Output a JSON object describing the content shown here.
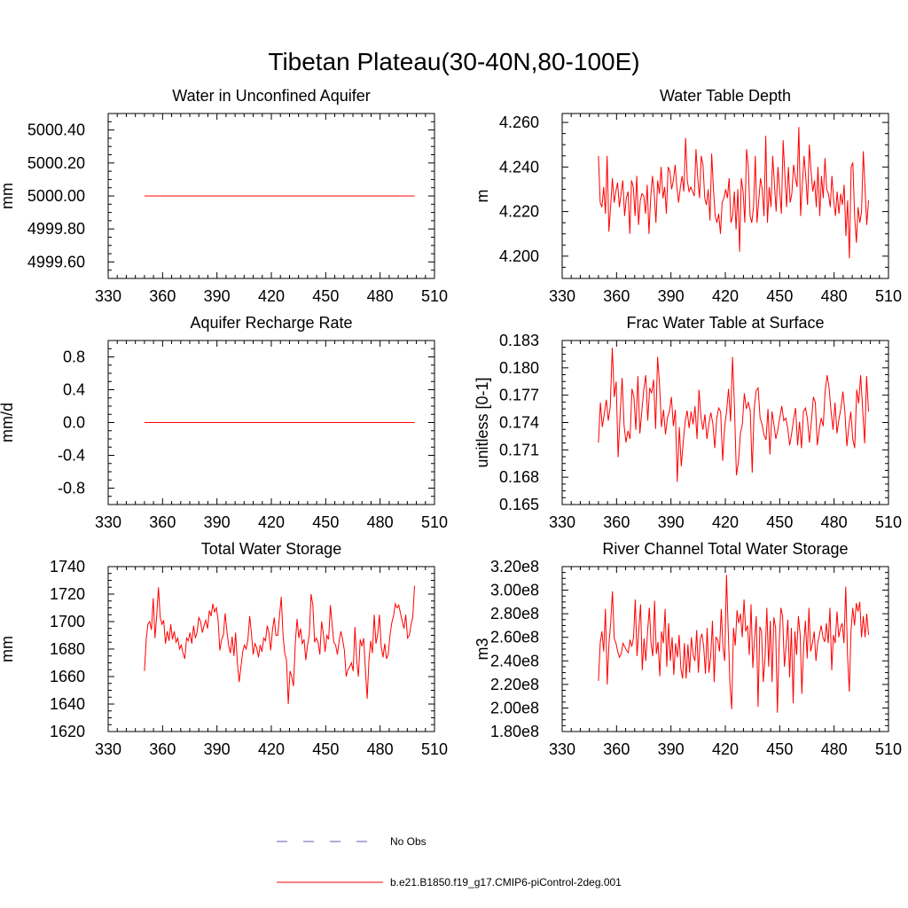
{
  "figure_title": "Tibetan Plateau(30-40N,80-100E)",
  "legend": {
    "entries": [
      {
        "label": "No Obs",
        "color": "#5b5bb8",
        "style": "dashed"
      },
      {
        "label": "b.e21.B1850.f19_g17.CMIP6-piControl-2deg.001",
        "color": "#ff0000",
        "style": "solid"
      }
    ]
  },
  "chart_data": [
    {
      "type": "line",
      "title": "Water in Unconfined Aquifer",
      "ylabel": "mm",
      "xlim": [
        330,
        510
      ],
      "ylim": [
        4999.5,
        5000.5
      ],
      "xticks": [
        330,
        360,
        390,
        420,
        450,
        480,
        510
      ],
      "xtick_labels": [
        "330",
        "360",
        "390",
        "420",
        "450",
        "480",
        "510"
      ],
      "yticks": [
        4999.6,
        4999.8,
        5000.0,
        5000.2,
        5000.4
      ],
      "ytick_labels": [
        "4999.60",
        "4999.80",
        "5000.00",
        "5000.20",
        "5000.40"
      ],
      "series": [
        {
          "name": "b.e21.B1850.f19_g17.CMIP6-piControl-2deg.001",
          "x_start": 350,
          "x_end": 499,
          "values": [
            5000.0,
            5000.0
          ]
        }
      ]
    },
    {
      "type": "line",
      "title": "Water Table Depth",
      "ylabel": "m",
      "xlim": [
        330,
        510
      ],
      "ylim": [
        4.19,
        4.264
      ],
      "xticks": [
        330,
        360,
        390,
        420,
        450,
        480,
        510
      ],
      "xtick_labels": [
        "330",
        "360",
        "390",
        "420",
        "450",
        "480",
        "510"
      ],
      "yticks": [
        4.2,
        4.22,
        4.24,
        4.26
      ],
      "ytick_labels": [
        "4.200",
        "4.220",
        "4.240",
        "4.260"
      ],
      "series": [
        {
          "name": "b.e21.B1850.f19_g17.CMIP6-piControl-2deg.001",
          "x_start": 350,
          "x_end": 499,
          "values": [
            4.245,
            4.224,
            4.222,
            4.231,
            4.219,
            4.245,
            4.211,
            4.222,
            4.235,
            4.224,
            4.229,
            4.233,
            4.222,
            4.228,
            4.234,
            4.218,
            4.226,
            4.229,
            4.21,
            4.234,
            4.231,
            4.218,
            4.236,
            4.214,
            4.225,
            4.228,
            4.227,
            4.219,
            4.232,
            4.21,
            4.226,
            4.236,
            4.228,
            4.215,
            4.234,
            4.228,
            4.24,
            4.226,
            4.231,
            4.219,
            4.24,
            4.238,
            4.23,
            4.234,
            4.241,
            4.231,
            4.224,
            4.231,
            4.236,
            4.229,
            4.253,
            4.234,
            4.229,
            4.231,
            4.229,
            4.227,
            4.248,
            4.235,
            4.226,
            4.245,
            4.241,
            4.226,
            4.223,
            4.23,
            4.216,
            4.246,
            4.23,
            4.218,
            4.215,
            4.219,
            4.21,
            4.224,
            4.226,
            4.23,
            4.226,
            4.235,
            4.215,
            4.218,
            4.229,
            4.212,
            4.23,
            4.202,
            4.235,
            4.229,
            4.215,
            4.248,
            4.24,
            4.218,
            4.215,
            4.222,
            4.245,
            4.215,
            4.225,
            4.235,
            4.23,
            4.218,
            4.254,
            4.215,
            4.231,
            4.222,
            4.245,
            4.232,
            4.22,
            4.24,
            4.229,
            4.219,
            4.252,
            4.236,
            4.222,
            4.24,
            4.224,
            4.228,
            4.241,
            4.235,
            4.231,
            4.258,
            4.218,
            4.232,
            4.245,
            4.235,
            4.223,
            4.25,
            4.238,
            4.229,
            4.234,
            4.222,
            4.24,
            4.218,
            4.236,
            4.226,
            4.244,
            4.23,
            4.228,
            4.222,
            4.236,
            4.225,
            4.218,
            4.229,
            4.219,
            4.228,
            4.223,
            4.232,
            4.209,
            4.225,
            4.199,
            4.24,
            4.242,
            4.218,
            4.206,
            4.222,
            4.215,
            4.22,
            4.247,
            4.23,
            4.214,
            4.225
          ]
        }
      ]
    },
    {
      "type": "line",
      "title": "Aquifer Recharge Rate",
      "ylabel": "mm/d",
      "xlim": [
        330,
        510
      ],
      "ylim": [
        -1.0,
        1.0
      ],
      "xticks": [
        330,
        360,
        390,
        420,
        450,
        480,
        510
      ],
      "xtick_labels": [
        "330",
        "360",
        "390",
        "420",
        "450",
        "480",
        "510"
      ],
      "yticks": [
        -0.8,
        -0.4,
        0.0,
        0.4,
        0.8
      ],
      "ytick_labels": [
        "-0.8",
        "-0.4",
        "0.0",
        "0.4",
        "0.8"
      ],
      "series": [
        {
          "name": "b.e21.B1850.f19_g17.CMIP6-piControl-2deg.001",
          "x_start": 350,
          "x_end": 499,
          "values": [
            0.0,
            0.0
          ]
        }
      ]
    },
    {
      "type": "line",
      "title": "Frac Water Table at Surface",
      "ylabel": "unitless [0-1]",
      "xlim": [
        330,
        510
      ],
      "ylim": [
        0.165,
        0.183
      ],
      "xticks": [
        330,
        360,
        390,
        420,
        450,
        480,
        510
      ],
      "xtick_labels": [
        "330",
        "360",
        "390",
        "420",
        "450",
        "480",
        "510"
      ],
      "yticks": [
        0.165,
        0.168,
        0.171,
        0.174,
        0.177,
        0.18,
        0.183
      ],
      "ytick_labels": [
        "0.165",
        "0.168",
        "0.171",
        "0.174",
        "0.177",
        "0.180",
        "0.183"
      ],
      "series": [
        {
          "name": "b.e21.B1850.f19_g17.CMIP6-piControl-2deg.001",
          "x_start": 350,
          "x_end": 499,
          "values": [
            0.1718,
            0.1762,
            0.1735,
            0.175,
            0.1765,
            0.1742,
            0.1757,
            0.1822,
            0.1768,
            0.1785,
            0.1702,
            0.1748,
            0.1789,
            0.1737,
            0.1718,
            0.1731,
            0.1722,
            0.1777,
            0.1768,
            0.1732,
            0.1791,
            0.1728,
            0.1752,
            0.1776,
            0.1792,
            0.1742,
            0.1778,
            0.1772,
            0.1787,
            0.1733,
            0.1812,
            0.1782,
            0.1735,
            0.1754,
            0.1727,
            0.1745,
            0.1752,
            0.1768,
            0.1736,
            0.1754,
            0.1675,
            0.1735,
            0.1692,
            0.1718,
            0.1741,
            0.1753,
            0.1734,
            0.1752,
            0.1738,
            0.1758,
            0.1722,
            0.1776,
            0.1746,
            0.1732,
            0.1749,
            0.1722,
            0.1738,
            0.1751,
            0.1739,
            0.1712,
            0.1745,
            0.1756,
            0.1752,
            0.1698,
            0.1735,
            0.1752,
            0.1777,
            0.1741,
            0.1812,
            0.1757,
            0.1682,
            0.1697,
            0.1728,
            0.1738,
            0.1772,
            0.1755,
            0.1762,
            0.1753,
            0.1685,
            0.1755,
            0.1775,
            0.1778,
            0.1745,
            0.1738,
            0.1726,
            0.1721,
            0.1755,
            0.1705,
            0.1752,
            0.1738,
            0.1722,
            0.1732,
            0.1746,
            0.1758,
            0.1742,
            0.1745,
            0.1734,
            0.1715,
            0.1728,
            0.1744,
            0.1756,
            0.1715,
            0.1741,
            0.1712,
            0.1752,
            0.1756,
            0.1744,
            0.1718,
            0.1741,
            0.1768,
            0.1762,
            0.1715,
            0.1732,
            0.1745,
            0.1736,
            0.1775,
            0.1792,
            0.1778,
            0.1752,
            0.1732,
            0.1762,
            0.1728,
            0.1744,
            0.1756,
            0.1774,
            0.1752,
            0.1714,
            0.1736,
            0.1752,
            0.1722,
            0.1712,
            0.1776,
            0.1761,
            0.1792,
            0.1756,
            0.1717,
            0.1791,
            0.1752
          ]
        }
      ]
    },
    {
      "type": "line",
      "title": "Total Water Storage",
      "ylabel": "mm",
      "xlim": [
        330,
        510
      ],
      "ylim": [
        1620,
        1740
      ],
      "xticks": [
        330,
        360,
        390,
        420,
        450,
        480,
        510
      ],
      "xtick_labels": [
        "330",
        "360",
        "390",
        "420",
        "450",
        "480",
        "510"
      ],
      "yticks": [
        1620,
        1640,
        1660,
        1680,
        1700,
        1720,
        1740
      ],
      "ytick_labels": [
        "1620",
        "1640",
        "1660",
        "1680",
        "1700",
        "1720",
        "1740"
      ],
      "series": [
        {
          "name": "b.e21.B1850.f19_g17.CMIP6-piControl-2deg.001",
          "x_start": 350,
          "x_end": 499,
          "values": [
            1664,
            1687,
            1698,
            1700,
            1694,
            1717,
            1688,
            1704,
            1725,
            1703,
            1698,
            1701,
            1684,
            1693,
            1686,
            1698,
            1687,
            1693,
            1685,
            1688,
            1680,
            1683,
            1677,
            1673,
            1688,
            1686,
            1692,
            1684,
            1697,
            1688,
            1692,
            1703,
            1700,
            1692,
            1697,
            1701,
            1695,
            1708,
            1704,
            1713,
            1707,
            1710,
            1701,
            1679,
            1687,
            1690,
            1706,
            1693,
            1683,
            1677,
            1689,
            1675,
            1692,
            1670,
            1656,
            1667,
            1678,
            1683,
            1680,
            1687,
            1704,
            1691,
            1676,
            1684,
            1681,
            1674,
            1683,
            1678,
            1688,
            1686,
            1697,
            1692,
            1679,
            1694,
            1703,
            1690,
            1690,
            1704,
            1718,
            1690,
            1677,
            1672,
            1640,
            1664,
            1660,
            1653,
            1684,
            1702,
            1688,
            1695,
            1684,
            1687,
            1672,
            1683,
            1690,
            1720,
            1712,
            1685,
            1688,
            1685,
            1676,
            1700,
            1691,
            1678,
            1690,
            1687,
            1712,
            1698,
            1685,
            1683,
            1676,
            1686,
            1693,
            1687,
            1679,
            1660,
            1665,
            1667,
            1670,
            1664,
            1696,
            1672,
            1660,
            1687,
            1682,
            1688,
            1665,
            1644,
            1672,
            1686,
            1677,
            1705,
            1684,
            1691,
            1705,
            1682,
            1674,
            1684,
            1673,
            1676,
            1690,
            1699,
            1704,
            1713,
            1710,
            1712,
            1706,
            1700,
            1695,
            1705,
            1688,
            1690,
            1698,
            1703,
            1726
          ]
        }
      ]
    },
    {
      "type": "line",
      "title": "River Channel Total Water Storage",
      "ylabel": "m3",
      "xlim": [
        330,
        510
      ],
      "ylim": [
        180000000.0,
        320000000.0
      ],
      "xticks": [
        330,
        360,
        390,
        420,
        450,
        480,
        510
      ],
      "xtick_labels": [
        "330",
        "360",
        "390",
        "420",
        "450",
        "480",
        "510"
      ],
      "yticks": [
        180000000.0,
        200000000.0,
        220000000.0,
        240000000.0,
        260000000.0,
        280000000.0,
        300000000.0,
        320000000.0
      ],
      "ytick_labels": [
        "1.80e8",
        "2.00e8",
        "2.20e8",
        "2.40e8",
        "2.60e8",
        "2.80e8",
        "3.00e8",
        "3.20e8"
      ],
      "series": [
        {
          "name": "b.e21.B1850.f19_g17.CMIP6-piControl-2deg.001",
          "x_start": 350,
          "x_end": 499,
          "values": [
            223000000.0,
            255000000.0,
            265000000.0,
            248000000.0,
            284000000.0,
            220000000.0,
            255000000.0,
            272000000.0,
            299000000.0,
            259000000.0,
            255000000.0,
            248000000.0,
            243000000.0,
            246000000.0,
            255000000.0,
            252000000.0,
            249000000.0,
            247000000.0,
            258000000.0,
            252000000.0,
            260000000.0,
            292000000.0,
            244000000.0,
            266000000.0,
            288000000.0,
            232000000.0,
            259000000.0,
            240000000.0,
            265000000.0,
            285000000.0,
            255000000.0,
            244000000.0,
            291000000.0,
            246000000.0,
            256000000.0,
            227000000.0,
            265000000.0,
            255000000.0,
            284000000.0,
            235000000.0,
            272000000.0,
            240000000.0,
            260000000.0,
            228000000.0,
            255000000.0,
            243000000.0,
            262000000.0,
            233000000.0,
            225000000.0,
            255000000.0,
            225000000.0,
            254000000.0,
            230000000.0,
            260000000.0,
            245000000.0,
            240000000.0,
            266000000.0,
            230000000.0,
            258000000.0,
            263000000.0,
            252000000.0,
            229000000.0,
            268000000.0,
            230000000.0,
            244000000.0,
            274000000.0,
            222000000.0,
            260000000.0,
            258000000.0,
            248000000.0,
            284000000.0,
            252000000.0,
            240000000.0,
            313000000.0,
            265000000.0,
            220000000.0,
            199000000.0,
            268000000.0,
            253000000.0,
            283000000.0,
            272000000.0,
            280000000.0,
            260000000.0,
            292000000.0,
            265000000.0,
            270000000.0,
            245000000.0,
            288000000.0,
            234000000.0,
            258000000.0,
            278000000.0,
            201000000.0,
            269000000.0,
            265000000.0,
            222000000.0,
            243000000.0,
            285000000.0,
            235000000.0,
            274000000.0,
            222000000.0,
            277000000.0,
            268000000.0,
            196000000.0,
            252000000.0,
            285000000.0,
            278000000.0,
            235000000.0,
            252000000.0,
            275000000.0,
            226000000.0,
            268000000.0,
            204000000.0,
            265000000.0,
            245000000.0,
            278000000.0,
            262000000.0,
            212000000.0,
            252000000.0,
            274000000.0,
            242000000.0,
            285000000.0,
            248000000.0,
            255000000.0,
            265000000.0,
            240000000.0,
            255000000.0,
            262000000.0,
            270000000.0,
            260000000.0,
            256000000.0,
            272000000.0,
            255000000.0,
            285000000.0,
            232000000.0,
            262000000.0,
            255000000.0,
            282000000.0,
            260000000.0,
            268000000.0,
            272000000.0,
            255000000.0,
            303000000.0,
            245000000.0,
            214000000.0,
            265000000.0,
            285000000.0,
            270000000.0,
            289000000.0,
            282000000.0,
            290000000.0,
            260000000.0,
            278000000.0,
            260000000.0,
            280000000.0,
            262000000.0
          ]
        }
      ]
    }
  ]
}
